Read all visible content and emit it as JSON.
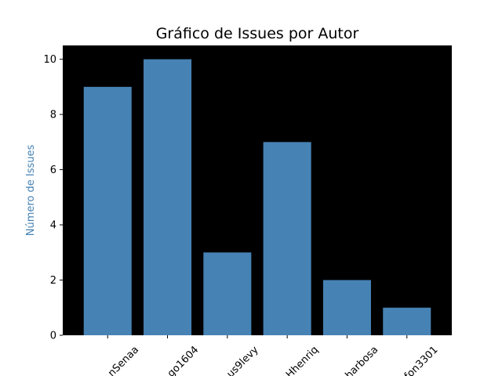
{
  "chart_data": {
    "type": "bar",
    "title": "Gráfico de Issues por Autor",
    "xlabel": "",
    "ylabel": "Número de Issues",
    "categories": [
      "nSenaa",
      "go1604",
      "us9levy",
      "Hhenriq",
      "harbosa",
      "fon3301"
    ],
    "values": [
      9,
      10,
      3,
      7,
      2,
      1
    ],
    "ylim": [
      0,
      10.5
    ],
    "yticks": [
      0,
      2,
      4,
      6,
      8,
      10
    ],
    "grid": false,
    "legend": "none",
    "colors": {
      "bar": "#4682b4",
      "plot_background": "#000000",
      "ylabel": "#4682b4"
    }
  }
}
